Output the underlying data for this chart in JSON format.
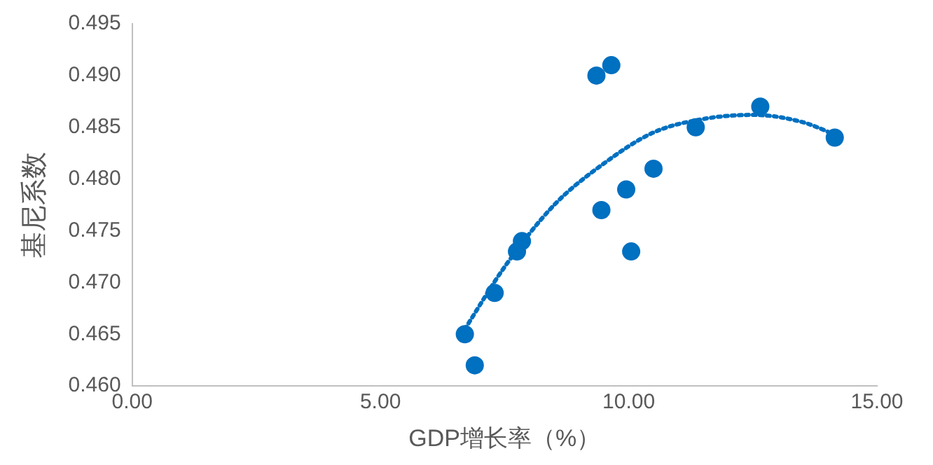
{
  "chart_data": {
    "type": "scatter",
    "xlabel": "GDP增长率（%）",
    "ylabel": "基尼系数",
    "series": [
      {
        "color": "#0070c0",
        "marker": "circle",
        "x": [
          6.7,
          6.9,
          7.3,
          7.75,
          7.85,
          9.35,
          9.65,
          9.45,
          9.95,
          10.05,
          10.5,
          11.35,
          12.65,
          14.15
        ],
        "values": [
          0.465,
          0.462,
          0.469,
          0.473,
          0.474,
          0.49,
          0.491,
          0.477,
          0.479,
          0.473,
          0.481,
          0.485,
          0.487,
          0.484
        ]
      },
      {
        "type": "line",
        "color": "#0070c0",
        "marker": "none",
        "line_style": "dotted",
        "x": [
          6.7,
          7.5,
          8.5,
          9.5,
          10.5,
          11.5,
          12.5,
          13.5,
          14.2
        ],
        "values": [
          0.4655,
          0.4715,
          0.4775,
          0.4815,
          0.4845,
          0.4858,
          0.4862,
          0.4855,
          0.4842
        ]
      }
    ],
    "xlim": [
      0,
      15
    ],
    "xticks": [
      {
        "value": 0,
        "label": "0.00"
      },
      {
        "value": 5,
        "label": "5.00"
      },
      {
        "value": 10,
        "label": "10.00"
      },
      {
        "value": 15,
        "label": "15.00"
      }
    ],
    "ylim": [
      0.46,
      0.495
    ],
    "yticks": [
      {
        "value": 0.46,
        "label": "0.460"
      },
      {
        "value": 0.465,
        "label": "0.465"
      },
      {
        "value": 0.47,
        "label": "0.470"
      },
      {
        "value": 0.475,
        "label": "0.475"
      },
      {
        "value": 0.48,
        "label": "0.480"
      },
      {
        "value": 0.485,
        "label": "0.485"
      },
      {
        "value": 0.49,
        "label": "0.490"
      },
      {
        "value": 0.495,
        "label": "0.495"
      }
    ],
    "grid": false,
    "legend": false
  }
}
